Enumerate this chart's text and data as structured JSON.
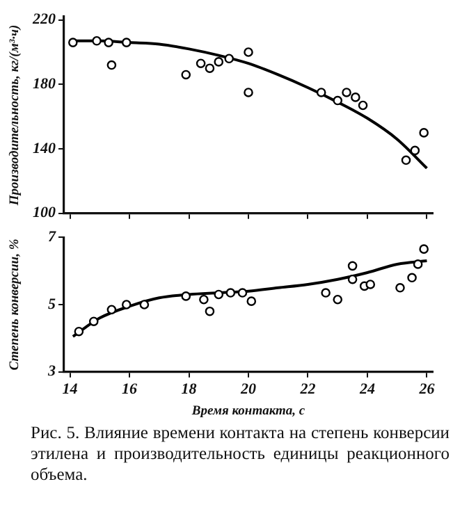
{
  "chart_data": [
    {
      "type": "scatter",
      "ylabel": "Производительность, кг/(м³·ч)",
      "xlim": [
        13.8,
        26.2
      ],
      "xticks": [
        14,
        16,
        18,
        20,
        22,
        24,
        26
      ],
      "ylim": [
        100,
        222
      ],
      "yticks": [
        100,
        140,
        180,
        220
      ],
      "tick_labels": "y",
      "grid": false,
      "legend": false,
      "series": [
        {
          "marker": "circle",
          "color": "#000000",
          "x": [
            14.1,
            14.9,
            15.3,
            15.4,
            15.9,
            17.9,
            18.4,
            18.7,
            19.0,
            19.35,
            20.0,
            20.0,
            22.45,
            23.0,
            23.3,
            23.6,
            23.85,
            25.3,
            25.6,
            25.9
          ],
          "values": [
            206,
            207,
            206,
            192,
            206,
            186,
            193,
            190,
            194,
            196,
            200,
            175,
            175,
            170,
            175,
            172,
            167,
            133,
            139,
            150
          ]
        },
        {
          "type": "line",
          "marker": "none",
          "color": "#000000",
          "x": [
            14,
            15,
            16,
            17,
            18,
            19,
            20,
            21,
            22,
            23,
            24,
            25,
            26
          ],
          "values": [
            207,
            207,
            206,
            205,
            202,
            198,
            193,
            186,
            178,
            169,
            159,
            146,
            128
          ]
        }
      ]
    },
    {
      "type": "scatter",
      "ylabel": "Степень конверсии, %",
      "xlabel": "Время контакта, с",
      "xlim": [
        13.8,
        26.2
      ],
      "xticks": [
        14,
        16,
        18,
        20,
        22,
        24,
        26
      ],
      "ylim": [
        3,
        7
      ],
      "yticks": [
        3,
        5,
        7
      ],
      "grid": false,
      "legend": false,
      "annotations": [
        "Рис. 5. Влияние времени контакта на степень конверсии этилена и производительность единицы реакционного объема."
      ],
      "series": [
        {
          "marker": "circle",
          "color": "#000000",
          "x": [
            14.3,
            14.8,
            15.4,
            15.9,
            16.5,
            17.9,
            18.5,
            18.7,
            19.0,
            19.4,
            19.8,
            20.1,
            22.6,
            23.0,
            23.5,
            23.5,
            23.9,
            24.1,
            25.1,
            25.5,
            25.7,
            25.9
          ],
          "values": [
            4.2,
            4.5,
            4.85,
            5.0,
            5.0,
            5.25,
            5.15,
            4.8,
            5.3,
            5.35,
            5.35,
            5.1,
            5.35,
            5.15,
            6.15,
            5.75,
            5.55,
            5.6,
            5.5,
            5.8,
            6.2,
            6.65
          ]
        },
        {
          "type": "line",
          "marker": "none",
          "color": "#000000",
          "x": [
            14.1,
            15,
            16,
            17,
            18,
            19,
            20,
            21,
            22,
            23,
            24,
            25,
            26
          ],
          "values": [
            4.05,
            4.6,
            4.95,
            5.2,
            5.3,
            5.35,
            5.4,
            5.5,
            5.6,
            5.75,
            5.95,
            6.2,
            6.3
          ]
        }
      ]
    }
  ]
}
